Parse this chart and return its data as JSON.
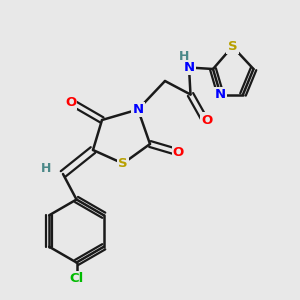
{
  "background_color": "#e8e8e8",
  "bond_color": "#1a1a1a",
  "atom_colors": {
    "N": "#0000ff",
    "O": "#ff0000",
    "S": "#b8a000",
    "Cl": "#00bb00",
    "H_label": "#4a8888",
    "C": "#1a1a1a"
  },
  "figsize": [
    3.0,
    3.0
  ],
  "dpi": 100
}
